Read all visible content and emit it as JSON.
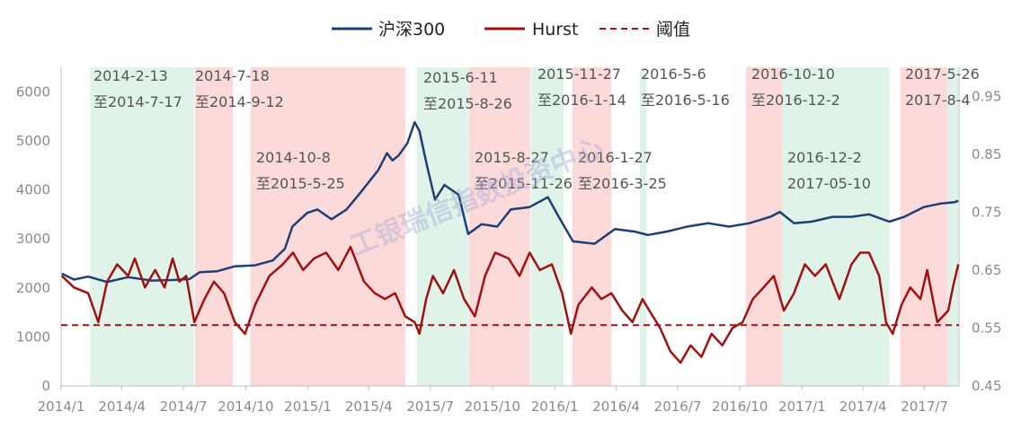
{
  "legend": {
    "hs300": "沪深300",
    "hurst": "Hurst",
    "threshold": "阈值"
  },
  "watermark": "工银瑞信指数投资中心",
  "colors": {
    "hs300": "#1f3f73",
    "hurst": "#a01212",
    "threshold": "#a01212",
    "trend_band": "#dff3e8",
    "reversal_band": "#fddada"
  },
  "chart_data": {
    "type": "line",
    "x_start": "2014/1",
    "x_end": "2017/9",
    "x_ticks": [
      "2014/1",
      "2014/4",
      "2014/7",
      "2014/10",
      "2015/1",
      "2015/4",
      "2015/7",
      "2015/10",
      "2016/1",
      "2016/4",
      "2016/7",
      "2016/10",
      "2017/1",
      "2017/4",
      "2017/7"
    ],
    "y_left": {
      "min": 0,
      "max": 6500,
      "ticks": [
        "0",
        "1000",
        "2000",
        "3000",
        "4000",
        "5000",
        "6000"
      ]
    },
    "y_right": {
      "min": 0.45,
      "max": 1.0,
      "ticks": [
        "0.45",
        "0.55",
        "0.65",
        "0.75",
        "0.85",
        "0.95"
      ]
    },
    "threshold": 0.555,
    "bands": [
      {
        "start": "2014-02-13",
        "end": "2014-07-17",
        "kind": "green",
        "label1": "2014-2-13",
        "label2": "至2014-7-17"
      },
      {
        "start": "2014-07-18",
        "end": "2014-09-12",
        "kind": "red",
        "label1": "2014-7-18",
        "label2": "至2014-9-12"
      },
      {
        "start": "2014-10-08",
        "end": "2015-05-25",
        "kind": "red",
        "label1": "2014-10-8",
        "label2": "至2015-5-25"
      },
      {
        "start": "2015-06-11",
        "end": "2015-08-26",
        "kind": "green",
        "label1": "2015-6-11",
        "label2": "至2015-8-26"
      },
      {
        "start": "2015-08-27",
        "end": "2015-11-26",
        "kind": "red",
        "label1": "2015-8-27",
        "label2": "至2015-11-26"
      },
      {
        "start": "2015-11-27",
        "end": "2016-01-14",
        "kind": "green",
        "label1": "2015-11-27",
        "label2": "至2016-1-14"
      },
      {
        "start": "2016-01-27",
        "end": "2016-03-25",
        "kind": "red",
        "label1": "2016-1-27",
        "label2": "至2016-3-25"
      },
      {
        "start": "2016-05-06",
        "end": "2016-05-16",
        "kind": "green",
        "label1": "2016-5-6",
        "label2": "至2016-5-16"
      },
      {
        "start": "2016-10-10",
        "end": "2016-12-02",
        "kind": "red",
        "label1": "2016-10-10",
        "label2": "至2016-12-2"
      },
      {
        "start": "2016-12-02",
        "end": "2017-05-10",
        "kind": "green",
        "label1": "2016-12-2",
        "label2": "2017-05-10"
      },
      {
        "start": "2017-05-26",
        "end": "2017-08-04",
        "kind": "red",
        "label1": "2017-5-26",
        "label2": "2017-8-4"
      },
      {
        "start": "2017-08-04",
        "end": "2017-08-20",
        "kind": "green",
        "label1": "",
        "label2": ""
      }
    ],
    "series": [
      {
        "name": "沪深300",
        "axis": "left",
        "points": [
          [
            "2014-01-02",
            2290
          ],
          [
            "2014-01-20",
            2170
          ],
          [
            "2014-02-10",
            2230
          ],
          [
            "2014-03-10",
            2120
          ],
          [
            "2014-04-10",
            2220
          ],
          [
            "2014-05-15",
            2150
          ],
          [
            "2014-06-15",
            2160
          ],
          [
            "2014-07-10",
            2180
          ],
          [
            "2014-07-25",
            2320
          ],
          [
            "2014-08-20",
            2340
          ],
          [
            "2014-09-15",
            2440
          ],
          [
            "2014-10-15",
            2460
          ],
          [
            "2014-11-10",
            2560
          ],
          [
            "2014-11-28",
            2800
          ],
          [
            "2014-12-09",
            3250
          ],
          [
            "2014-12-31",
            3530
          ],
          [
            "2015-01-15",
            3600
          ],
          [
            "2015-02-05",
            3400
          ],
          [
            "2015-02-27",
            3600
          ],
          [
            "2015-03-20",
            3950
          ],
          [
            "2015-04-15",
            4400
          ],
          [
            "2015-04-28",
            4750
          ],
          [
            "2015-05-06",
            4600
          ],
          [
            "2015-05-15",
            4700
          ],
          [
            "2015-05-28",
            4950
          ],
          [
            "2015-06-08",
            5380
          ],
          [
            "2015-06-15",
            5200
          ],
          [
            "2015-06-26",
            4500
          ],
          [
            "2015-07-08",
            3800
          ],
          [
            "2015-07-22",
            4100
          ],
          [
            "2015-08-12",
            3900
          ],
          [
            "2015-08-26",
            3100
          ],
          [
            "2015-09-15",
            3300
          ],
          [
            "2015-10-08",
            3250
          ],
          [
            "2015-10-28",
            3600
          ],
          [
            "2015-11-25",
            3650
          ],
          [
            "2015-12-22",
            3850
          ],
          [
            "2016-01-07",
            3450
          ],
          [
            "2016-01-28",
            2950
          ],
          [
            "2016-02-29",
            2900
          ],
          [
            "2016-03-30",
            3200
          ],
          [
            "2016-04-28",
            3150
          ],
          [
            "2016-05-18",
            3080
          ],
          [
            "2016-06-15",
            3150
          ],
          [
            "2016-07-15",
            3250
          ],
          [
            "2016-08-15",
            3320
          ],
          [
            "2016-09-15",
            3250
          ],
          [
            "2016-10-15",
            3320
          ],
          [
            "2016-11-15",
            3450
          ],
          [
            "2016-11-29",
            3550
          ],
          [
            "2016-12-20",
            3320
          ],
          [
            "2017-01-15",
            3350
          ],
          [
            "2017-02-15",
            3450
          ],
          [
            "2017-03-15",
            3450
          ],
          [
            "2017-04-10",
            3500
          ],
          [
            "2017-05-10",
            3350
          ],
          [
            "2017-06-01",
            3450
          ],
          [
            "2017-06-30",
            3650
          ],
          [
            "2017-07-25",
            3720
          ],
          [
            "2017-08-15",
            3750
          ],
          [
            "2017-08-20",
            3780
          ]
        ]
      },
      {
        "name": "Hurst",
        "axis": "right",
        "points": [
          [
            "2014-01-02",
            0.64
          ],
          [
            "2014-01-20",
            0.62
          ],
          [
            "2014-02-10",
            0.61
          ],
          [
            "2014-02-25",
            0.56
          ],
          [
            "2014-03-10",
            0.63
          ],
          [
            "2014-03-25",
            0.66
          ],
          [
            "2014-04-10",
            0.64
          ],
          [
            "2014-04-20",
            0.67
          ],
          [
            "2014-05-05",
            0.62
          ],
          [
            "2014-05-20",
            0.65
          ],
          [
            "2014-06-03",
            0.62
          ],
          [
            "2014-06-15",
            0.67
          ],
          [
            "2014-06-25",
            0.63
          ],
          [
            "2014-07-05",
            0.64
          ],
          [
            "2014-07-17",
            0.56
          ],
          [
            "2014-08-01",
            0.6
          ],
          [
            "2014-08-15",
            0.63
          ],
          [
            "2014-08-30",
            0.61
          ],
          [
            "2014-09-15",
            0.56
          ],
          [
            "2014-09-30",
            0.54
          ],
          [
            "2014-10-15",
            0.59
          ],
          [
            "2014-11-05",
            0.64
          ],
          [
            "2014-11-25",
            0.66
          ],
          [
            "2014-12-10",
            0.68
          ],
          [
            "2014-12-25",
            0.65
          ],
          [
            "2015-01-10",
            0.67
          ],
          [
            "2015-01-28",
            0.68
          ],
          [
            "2015-02-15",
            0.65
          ],
          [
            "2015-03-05",
            0.69
          ],
          [
            "2015-03-25",
            0.63
          ],
          [
            "2015-04-10",
            0.61
          ],
          [
            "2015-04-25",
            0.6
          ],
          [
            "2015-05-10",
            0.61
          ],
          [
            "2015-05-25",
            0.57
          ],
          [
            "2015-06-08",
            0.56
          ],
          [
            "2015-06-15",
            0.54
          ],
          [
            "2015-06-25",
            0.6
          ],
          [
            "2015-07-05",
            0.64
          ],
          [
            "2015-07-20",
            0.61
          ],
          [
            "2015-08-05",
            0.65
          ],
          [
            "2015-08-20",
            0.6
          ],
          [
            "2015-09-05",
            0.57
          ],
          [
            "2015-09-20",
            0.64
          ],
          [
            "2015-10-05",
            0.68
          ],
          [
            "2015-10-25",
            0.67
          ],
          [
            "2015-11-10",
            0.64
          ],
          [
            "2015-11-25",
            0.68
          ],
          [
            "2015-12-10",
            0.65
          ],
          [
            "2015-12-28",
            0.66
          ],
          [
            "2016-01-12",
            0.61
          ],
          [
            "2016-01-25",
            0.54
          ],
          [
            "2016-02-05",
            0.59
          ],
          [
            "2016-02-25",
            0.62
          ],
          [
            "2016-03-10",
            0.6
          ],
          [
            "2016-03-25",
            0.61
          ],
          [
            "2016-04-10",
            0.58
          ],
          [
            "2016-04-25",
            0.56
          ],
          [
            "2016-05-10",
            0.6
          ],
          [
            "2016-05-20",
            0.58
          ],
          [
            "2016-06-05",
            0.55
          ],
          [
            "2016-06-20",
            0.51
          ],
          [
            "2016-07-05",
            0.49
          ],
          [
            "2016-07-20",
            0.52
          ],
          [
            "2016-08-05",
            0.5
          ],
          [
            "2016-08-20",
            0.54
          ],
          [
            "2016-09-05",
            0.52
          ],
          [
            "2016-09-20",
            0.55
          ],
          [
            "2016-10-05",
            0.56
          ],
          [
            "2016-10-20",
            0.6
          ],
          [
            "2016-11-05",
            0.62
          ],
          [
            "2016-11-20",
            0.64
          ],
          [
            "2016-12-05",
            0.58
          ],
          [
            "2016-12-20",
            0.61
          ],
          [
            "2017-01-05",
            0.66
          ],
          [
            "2017-01-20",
            0.64
          ],
          [
            "2017-02-05",
            0.66
          ],
          [
            "2017-02-25",
            0.6
          ],
          [
            "2017-03-15",
            0.66
          ],
          [
            "2017-03-28",
            0.68
          ],
          [
            "2017-04-10",
            0.68
          ],
          [
            "2017-04-25",
            0.64
          ],
          [
            "2017-05-05",
            0.56
          ],
          [
            "2017-05-15",
            0.54
          ],
          [
            "2017-05-28",
            0.59
          ],
          [
            "2017-06-10",
            0.62
          ],
          [
            "2017-06-25",
            0.6
          ],
          [
            "2017-07-05",
            0.65
          ],
          [
            "2017-07-20",
            0.56
          ],
          [
            "2017-08-05",
            0.58
          ],
          [
            "2017-08-12",
            0.62
          ],
          [
            "2017-08-20",
            0.66
          ]
        ]
      }
    ]
  }
}
